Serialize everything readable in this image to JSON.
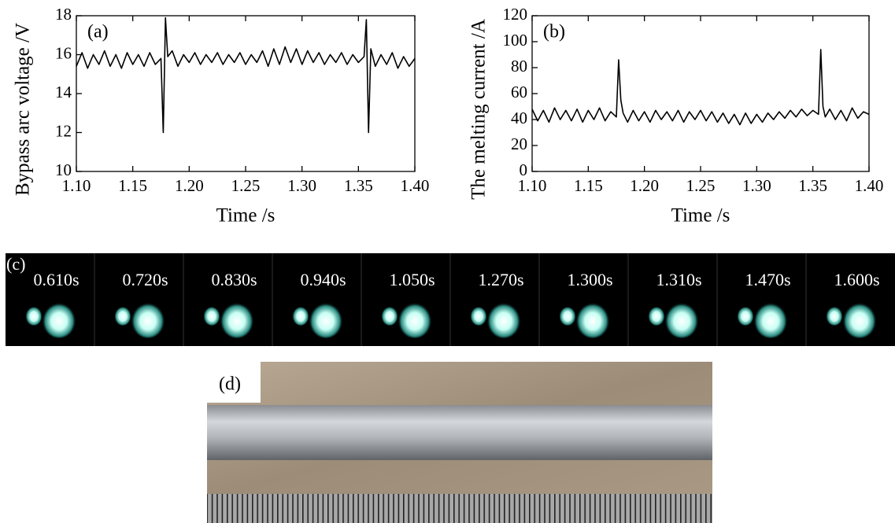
{
  "chart_data": [
    {
      "type": "line",
      "annotation": "(a)",
      "xlabel": "Time /s",
      "ylabel": "Bypass arc voltage /V",
      "color": "#000000",
      "x": [
        1.1,
        1.105,
        1.11,
        1.115,
        1.12,
        1.125,
        1.13,
        1.135,
        1.14,
        1.145,
        1.15,
        1.155,
        1.16,
        1.165,
        1.17,
        1.175,
        1.177,
        1.179,
        1.181,
        1.185,
        1.19,
        1.195,
        1.2,
        1.205,
        1.21,
        1.215,
        1.22,
        1.225,
        1.23,
        1.235,
        1.24,
        1.245,
        1.25,
        1.255,
        1.26,
        1.265,
        1.27,
        1.275,
        1.28,
        1.285,
        1.29,
        1.295,
        1.3,
        1.305,
        1.31,
        1.315,
        1.32,
        1.325,
        1.33,
        1.335,
        1.34,
        1.345,
        1.35,
        1.355,
        1.357,
        1.359,
        1.361,
        1.365,
        1.37,
        1.375,
        1.38,
        1.385,
        1.39,
        1.395,
        1.4
      ],
      "values": [
        15.4,
        16.1,
        15.3,
        16.0,
        15.5,
        16.2,
        15.4,
        16.0,
        15.3,
        16.1,
        15.5,
        16.0,
        15.4,
        16.1,
        15.5,
        15.8,
        12.0,
        17.9,
        15.9,
        16.2,
        15.4,
        16.0,
        15.6,
        16.1,
        15.5,
        16.0,
        15.6,
        16.1,
        15.5,
        16.0,
        15.6,
        16.1,
        15.5,
        16.0,
        15.6,
        16.2,
        15.4,
        16.3,
        15.5,
        16.4,
        15.6,
        16.3,
        15.5,
        16.2,
        15.6,
        16.1,
        15.5,
        16.0,
        15.6,
        16.1,
        15.5,
        16.0,
        15.6,
        15.9,
        17.8,
        12.0,
        16.3,
        15.4,
        16.0,
        15.5,
        16.1,
        15.3,
        15.9,
        15.4,
        15.8
      ],
      "xlim": [
        1.1,
        1.4
      ],
      "ylim": [
        10,
        18
      ],
      "xticks": [
        {
          "value": 1.1,
          "label": "1.10"
        },
        {
          "value": 1.15,
          "label": "1.15"
        },
        {
          "value": 1.2,
          "label": "1.20"
        },
        {
          "value": 1.25,
          "label": "1.25"
        },
        {
          "value": 1.3,
          "label": "1.30"
        },
        {
          "value": 1.35,
          "label": "1.35"
        },
        {
          "value": 1.4,
          "label": "1.40"
        }
      ],
      "yticks": [
        10,
        12,
        14,
        16,
        18
      ]
    },
    {
      "type": "line",
      "annotation": "(b)",
      "xlabel": "Time /s",
      "ylabel": "The melting current /A",
      "color": "#000000",
      "x": [
        1.1,
        1.105,
        1.11,
        1.115,
        1.12,
        1.125,
        1.13,
        1.135,
        1.14,
        1.145,
        1.15,
        1.155,
        1.16,
        1.165,
        1.17,
        1.175,
        1.177,
        1.179,
        1.181,
        1.185,
        1.19,
        1.195,
        1.2,
        1.205,
        1.21,
        1.215,
        1.22,
        1.225,
        1.23,
        1.235,
        1.24,
        1.245,
        1.25,
        1.255,
        1.26,
        1.265,
        1.27,
        1.275,
        1.28,
        1.285,
        1.29,
        1.295,
        1.3,
        1.305,
        1.31,
        1.315,
        1.32,
        1.325,
        1.33,
        1.335,
        1.34,
        1.345,
        1.35,
        1.355,
        1.357,
        1.359,
        1.361,
        1.365,
        1.37,
        1.375,
        1.38,
        1.385,
        1.39,
        1.395,
        1.4
      ],
      "values": [
        48,
        39,
        47,
        38,
        49,
        40,
        47,
        39,
        48,
        38,
        47,
        40,
        49,
        39,
        46,
        42,
        86,
        55,
        45,
        38,
        47,
        39,
        46,
        38,
        47,
        40,
        46,
        39,
        47,
        38,
        46,
        40,
        47,
        39,
        46,
        38,
        45,
        37,
        44,
        36,
        45,
        37,
        44,
        38,
        45,
        40,
        46,
        41,
        47,
        42,
        48,
        43,
        47,
        44,
        94,
        50,
        42,
        48,
        40,
        47,
        39,
        49,
        41,
        46,
        44
      ],
      "xlim": [
        1.1,
        1.4
      ],
      "ylim": [
        0,
        120
      ],
      "xticks": [
        {
          "value": 1.1,
          "label": "1.10"
        },
        {
          "value": 1.15,
          "label": "1.15"
        },
        {
          "value": 1.2,
          "label": "1.20"
        },
        {
          "value": 1.25,
          "label": "1.25"
        },
        {
          "value": 1.3,
          "label": "1.30"
        },
        {
          "value": 1.35,
          "label": "1.35"
        },
        {
          "value": 1.4,
          "label": "1.40"
        }
      ],
      "yticks": [
        0,
        20,
        40,
        60,
        80,
        100,
        120
      ]
    }
  ],
  "frames": {
    "label": "(c)",
    "times": [
      "0.610s",
      "0.720s",
      "0.830s",
      "0.940s",
      "1.050s",
      "1.270s",
      "1.300s",
      "1.310s",
      "1.470s",
      "1.600s"
    ]
  },
  "photo": {
    "label": "(d)"
  }
}
